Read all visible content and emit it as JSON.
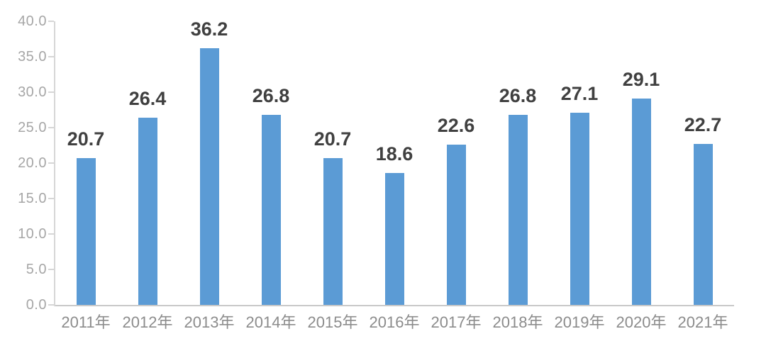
{
  "chart_data": {
    "type": "bar",
    "title": "",
    "xlabel": "",
    "ylabel": "",
    "categories": [
      "2011年",
      "2012年",
      "2013年",
      "2014年",
      "2015年",
      "2016年",
      "2017年",
      "2018年",
      "2019年",
      "2020年",
      "2021年"
    ],
    "values": [
      20.7,
      26.4,
      36.2,
      26.8,
      20.7,
      18.6,
      22.6,
      26.8,
      27.1,
      29.1,
      22.7
    ],
    "value_labels": [
      "20.7",
      "26.4",
      "36.2",
      "26.8",
      "20.7",
      "18.6",
      "22.6",
      "26.8",
      "27.1",
      "29.1",
      "22.7"
    ],
    "ylim": [
      0,
      40
    ],
    "ytick_step": 5,
    "ytick_labels": [
      "0.0",
      "5.0",
      "10.0",
      "15.0",
      "20.0",
      "25.0",
      "30.0",
      "35.0",
      "40.0"
    ],
    "grid": false,
    "legend": null,
    "colors": {
      "bar": "#5b9bd5",
      "value_label": "#404040",
      "ytick_label": "#a6a6a6",
      "xtick_label": "#8c8c8c",
      "axis_line": "#d6d6d6",
      "baseline": "#c9c9c9",
      "background": "#ffffff"
    }
  }
}
